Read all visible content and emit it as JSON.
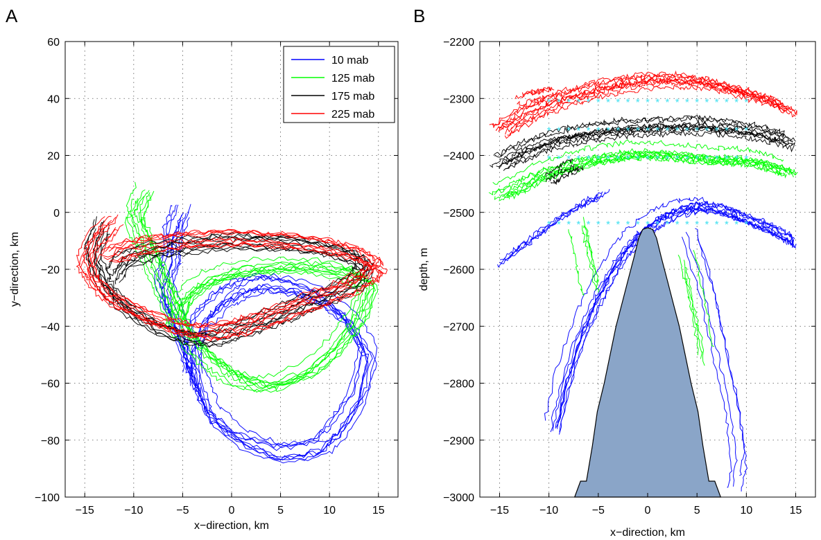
{
  "chart_data": [
    {
      "panel_label": "A",
      "type": "line",
      "xlabel": "x−direction, km",
      "ylabel": "y−direction, km",
      "xlim": [
        -17,
        17
      ],
      "ylim": [
        -100,
        60
      ],
      "xticks": [
        -15,
        -10,
        -5,
        0,
        5,
        10,
        15
      ],
      "yticks": [
        -100,
        -80,
        -60,
        -40,
        -20,
        0,
        20,
        40,
        60
      ],
      "xtick_labels": [
        "−15",
        "−10",
        "−5",
        "0",
        "5",
        "10",
        "15"
      ],
      "ytick_labels": [
        "−100",
        "−80",
        "−60",
        "−40",
        "−20",
        "0",
        "20",
        "40",
        "60"
      ],
      "grid": true,
      "legend_position": "top-right",
      "series": [
        {
          "name": "10 mab",
          "color": "#0000ff",
          "x": [
            -5,
            -6,
            -6,
            -7,
            -6,
            -5,
            -4,
            -3,
            -2,
            1,
            5,
            9,
            11,
            13,
            14,
            12,
            9,
            6,
            3,
            1,
            -1,
            -3,
            -4,
            -4
          ],
          "y": [
            0,
            -8,
            -16,
            -26,
            -36,
            -45,
            -55,
            -64,
            -72,
            -80,
            -85,
            -83,
            -76,
            -65,
            -50,
            -38,
            -30,
            -26,
            -25,
            -27,
            -31,
            -38,
            -48,
            -60
          ]
        },
        {
          "name": "125 mab",
          "color": "#00ff00",
          "x": [
            -9,
            -10,
            -9,
            -8,
            -7,
            -6,
            -5,
            -3,
            -1,
            1,
            4,
            8,
            11,
            13,
            14,
            12,
            8,
            4,
            0,
            -3,
            -5,
            -6
          ],
          "y": [
            8,
            0,
            -8,
            -16,
            -24,
            -32,
            -40,
            -48,
            -54,
            -58,
            -60,
            -55,
            -45,
            -35,
            -25,
            -20,
            -18,
            -18,
            -20,
            -24,
            -30,
            -38
          ]
        },
        {
          "name": "175 mab",
          "color": "#000000",
          "x": [
            -13,
            -14,
            -13,
            -11,
            -8,
            -5,
            -2,
            1,
            4,
            7,
            10,
            13,
            14,
            12,
            8,
            4,
            0,
            -4,
            -8,
            -11,
            -12
          ],
          "y": [
            -5,
            -15,
            -25,
            -33,
            -40,
            -44,
            -45,
            -42,
            -38,
            -34,
            -30,
            -25,
            -19,
            -15,
            -12,
            -11,
            -11,
            -12,
            -14,
            -18,
            -24
          ]
        },
        {
          "name": "225 mab",
          "color": "#ff0000",
          "x": [
            -12,
            -14,
            -15,
            -14,
            -12,
            -9,
            -6,
            -3,
            0,
            3,
            6,
            9,
            12,
            14,
            15,
            13,
            10,
            6,
            2,
            -2,
            -6,
            -10,
            -13
          ],
          "y": [
            -3,
            -10,
            -18,
            -25,
            -31,
            -36,
            -40,
            -42,
            -41,
            -38,
            -34,
            -30,
            -26,
            -22,
            -19,
            -15,
            -12,
            -10,
            -9,
            -9,
            -10,
            -12,
            -16
          ]
        }
      ]
    },
    {
      "panel_label": "B",
      "type": "line",
      "xlabel": "x−direction, km",
      "ylabel": "depth, m",
      "xlim": [
        -17,
        17
      ],
      "ylim": [
        -3000,
        -2200
      ],
      "xticks": [
        -15,
        -10,
        -5,
        0,
        5,
        10,
        15
      ],
      "yticks": [
        -3000,
        -2900,
        -2800,
        -2700,
        -2600,
        -2500,
        -2400,
        -2300,
        -2200
      ],
      "xtick_labels": [
        "−15",
        "−10",
        "−5",
        "0",
        "5",
        "10",
        "15"
      ],
      "ytick_labels": [
        "−3000",
        "−2900",
        "−2800",
        "−2700",
        "−2600",
        "−2500",
        "−2400",
        "−2300",
        "−2200"
      ],
      "grid": true,
      "seamount": {
        "fill": "#8aa5c8",
        "x": [
          -7.4,
          -6.8,
          -6.2,
          -5.6,
          -5.1,
          -4.4,
          -3.8,
          -3.2,
          -2.6,
          -2.0,
          -1.4,
          -0.9,
          -0.5,
          -0.2,
          0.0,
          0.2,
          0.5,
          0.9,
          1.4,
          2.0,
          2.6,
          3.2,
          3.8,
          4.4,
          5.1,
          5.6,
          6.2,
          6.8,
          7.4
        ],
        "y": [
          -3000,
          -2972,
          -2972,
          -2910,
          -2850,
          -2800,
          -2750,
          -2700,
          -2660,
          -2620,
          -2580,
          -2545,
          -2530,
          -2528,
          -2527,
          -2528,
          -2530,
          -2545,
          -2580,
          -2620,
          -2660,
          -2700,
          -2750,
          -2800,
          -2850,
          -2910,
          -2972,
          -2972,
          -3000
        ]
      },
      "release_depths": [
        -2520,
        -2405,
        -2355,
        -2305
      ],
      "release_x_range": [
        -10,
        10
      ],
      "series": [
        {
          "name": "10 mab",
          "color": "#0000ff",
          "x": [
            -9.5,
            -8.5,
            -7,
            -5.5,
            -4,
            -2.5,
            -1,
            0.5,
            2,
            3.5,
            5,
            6.5,
            8,
            9.5,
            11,
            12.5,
            14,
            14.5
          ],
          "y": [
            -2880,
            -2800,
            -2720,
            -2660,
            -2610,
            -2570,
            -2540,
            -2520,
            -2505,
            -2495,
            -2490,
            -2492,
            -2500,
            -2510,
            -2520,
            -2530,
            -2545,
            -2555
          ],
          "extra": [
            {
              "x": [
                -14.5,
                -13,
                -11.5,
                -10,
                -8.5,
                -7,
                -5.5,
                -4
              ],
              "y": [
                -2590,
                -2570,
                -2550,
                -2530,
                -2510,
                -2495,
                -2480,
                -2470
              ]
            },
            {
              "x": [
                4,
                5.5,
                6.5,
                7.5,
                8.5,
                9,
                8.5
              ],
              "y": [
                -2540,
                -2620,
                -2700,
                -2780,
                -2860,
                -2940,
                -2985
              ]
            }
          ]
        },
        {
          "name": "125 mab",
          "color": "#00ff00",
          "x": [
            -15,
            -13.5,
            -12,
            -10.5,
            -9,
            -7.5,
            -6,
            -4.5,
            -3,
            -1.5,
            0,
            1.5,
            3,
            4.5,
            6,
            7.5,
            9,
            10.5,
            12,
            13.5,
            14.5
          ],
          "y": [
            -2465,
            -2455,
            -2440,
            -2428,
            -2420,
            -2412,
            -2405,
            -2400,
            -2396,
            -2393,
            -2392,
            -2393,
            -2395,
            -2398,
            -2400,
            -2402,
            -2403,
            -2405,
            -2410,
            -2418,
            -2425
          ],
          "extra": [
            {
              "x": [
                -7,
                -6.5,
                -6,
                -5.5
              ],
              "y": [
                -2520,
                -2560,
                -2600,
                -2640
              ]
            },
            {
              "x": [
                4,
                4.5,
                5,
                5.5,
                6
              ],
              "y": [
                -2580,
                -2620,
                -2660,
                -2700,
                -2760
              ]
            }
          ]
        },
        {
          "name": "175 mab",
          "color": "#000000",
          "x": [
            -15,
            -13.5,
            -12,
            -10.5,
            -9,
            -7.5,
            -6,
            -4.5,
            -3,
            -1.5,
            0,
            1.5,
            3,
            4.5,
            6,
            7.5,
            9,
            10.5,
            12,
            13.5,
            14.5
          ],
          "y": [
            -2415,
            -2400,
            -2388,
            -2378,
            -2370,
            -2364,
            -2360,
            -2356,
            -2352,
            -2350,
            -2349,
            -2348,
            -2347,
            -2346,
            -2347,
            -2349,
            -2352,
            -2356,
            -2362,
            -2368,
            -2375
          ],
          "extra": [
            {
              "x": [
                -10,
                -9,
                -8,
                -7
              ],
              "y": [
                -2440,
                -2430,
                -2420,
                -2415
              ]
            }
          ]
        },
        {
          "name": "225 mab",
          "color": "#ff0000",
          "x": [
            -15,
            -13.5,
            -12,
            -10.5,
            -9,
            -7.5,
            -6,
            -4.5,
            -3,
            -1.5,
            0,
            1.5,
            3,
            4.5,
            6,
            7.5,
            9,
            10.5,
            12,
            13.5,
            14.5
          ],
          "y": [
            -2355,
            -2340,
            -2325,
            -2312,
            -2302,
            -2294,
            -2287,
            -2280,
            -2275,
            -2271,
            -2268,
            -2266,
            -2266,
            -2268,
            -2272,
            -2278,
            -2285,
            -2292,
            -2300,
            -2310,
            -2320
          ],
          "extra": [
            {
              "x": [
                -13,
                -12,
                -11,
                -10
              ],
              "y": [
                -2300,
                -2295,
                -2292,
                -2290
              ]
            }
          ]
        }
      ]
    }
  ]
}
